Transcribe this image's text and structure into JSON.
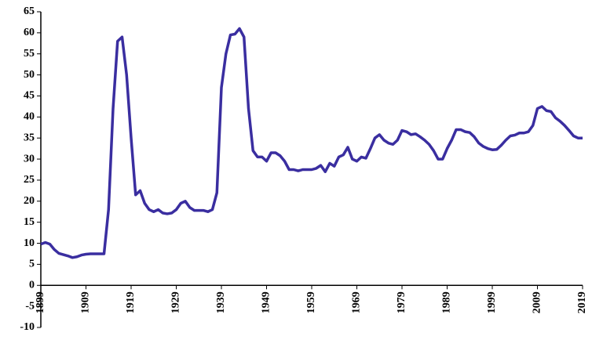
{
  "chart_data": {
    "type": "line",
    "x": [
      1899,
      1900,
      1901,
      1902,
      1903,
      1904,
      1905,
      1906,
      1907,
      1908,
      1909,
      1910,
      1911,
      1912,
      1913,
      1914,
      1915,
      1916,
      1917,
      1918,
      1919,
      1920,
      1921,
      1922,
      1923,
      1924,
      1925,
      1926,
      1927,
      1928,
      1929,
      1930,
      1931,
      1932,
      1933,
      1934,
      1935,
      1936,
      1937,
      1938,
      1939,
      1940,
      1941,
      1942,
      1943,
      1944,
      1945,
      1946,
      1947,
      1948,
      1949,
      1950,
      1951,
      1952,
      1953,
      1954,
      1955,
      1956,
      1957,
      1958,
      1959,
      1960,
      1961,
      1962,
      1963,
      1964,
      1965,
      1966,
      1967,
      1968,
      1969,
      1970,
      1971,
      1972,
      1973,
      1974,
      1975,
      1976,
      1977,
      1978,
      1979,
      1980,
      1981,
      1982,
      1983,
      1984,
      1985,
      1986,
      1987,
      1988,
      1989,
      1990,
      1991,
      1992,
      1993,
      1994,
      1995,
      1996,
      1997,
      1998,
      1999,
      2000,
      2001,
      2002,
      2003,
      2004,
      2005,
      2006,
      2007,
      2008,
      2009,
      2010,
      2011,
      2012,
      2013,
      2014,
      2015,
      2016,
      2017,
      2018,
      2019
    ],
    "series": [
      {
        "color": "#3a2ea0",
        "values": [
          9.8,
          10.2,
          9.8,
          8.5,
          7.6,
          7.3,
          7.0,
          6.6,
          6.8,
          7.2,
          7.4,
          7.5,
          7.5,
          7.5,
          7.5,
          18,
          42,
          58,
          59,
          50,
          35,
          21.5,
          22.5,
          19.5,
          18,
          17.5,
          18,
          17.2,
          17,
          17.2,
          18,
          19.5,
          20,
          18.5,
          17.8,
          17.8,
          17.8,
          17.5,
          18,
          22,
          47,
          55,
          59.5,
          59.7,
          61,
          59,
          42,
          32,
          30.5,
          30.5,
          29.5,
          31.5,
          31.5,
          30.8,
          29.5,
          27.5,
          27.5,
          27.2,
          27.5,
          27.5,
          27.5,
          27.8,
          28.5,
          27,
          29,
          28.3,
          30.5,
          31,
          32.8,
          30,
          29.5,
          30.5,
          30.2,
          32.5,
          35,
          35.8,
          34.5,
          33.8,
          33.5,
          34.5,
          36.8,
          36.5,
          35.8,
          36,
          35.3,
          34.5,
          33.5,
          32,
          30,
          30,
          32.5,
          34.5,
          37,
          37,
          36.5,
          36.3,
          35.3,
          33.8,
          33,
          32.5,
          32.2,
          32.3,
          33.3,
          34.5,
          35.5,
          35.7,
          36.2,
          36.2,
          36.5,
          38,
          42,
          42.5,
          41.5,
          41.3,
          39.8,
          39,
          38,
          36.8,
          35.5,
          35,
          35
        ]
      }
    ],
    "xlim": [
      1899,
      2019
    ],
    "xticks": [
      1899,
      1909,
      1919,
      1929,
      1939,
      1949,
      1959,
      1969,
      1979,
      1989,
      1999,
      2009,
      2019
    ],
    "ylim": [
      -10,
      65
    ],
    "yticks": [
      -10,
      -5,
      0,
      5,
      10,
      15,
      20,
      25,
      30,
      35,
      40,
      45,
      50,
      55,
      60,
      65
    ]
  }
}
